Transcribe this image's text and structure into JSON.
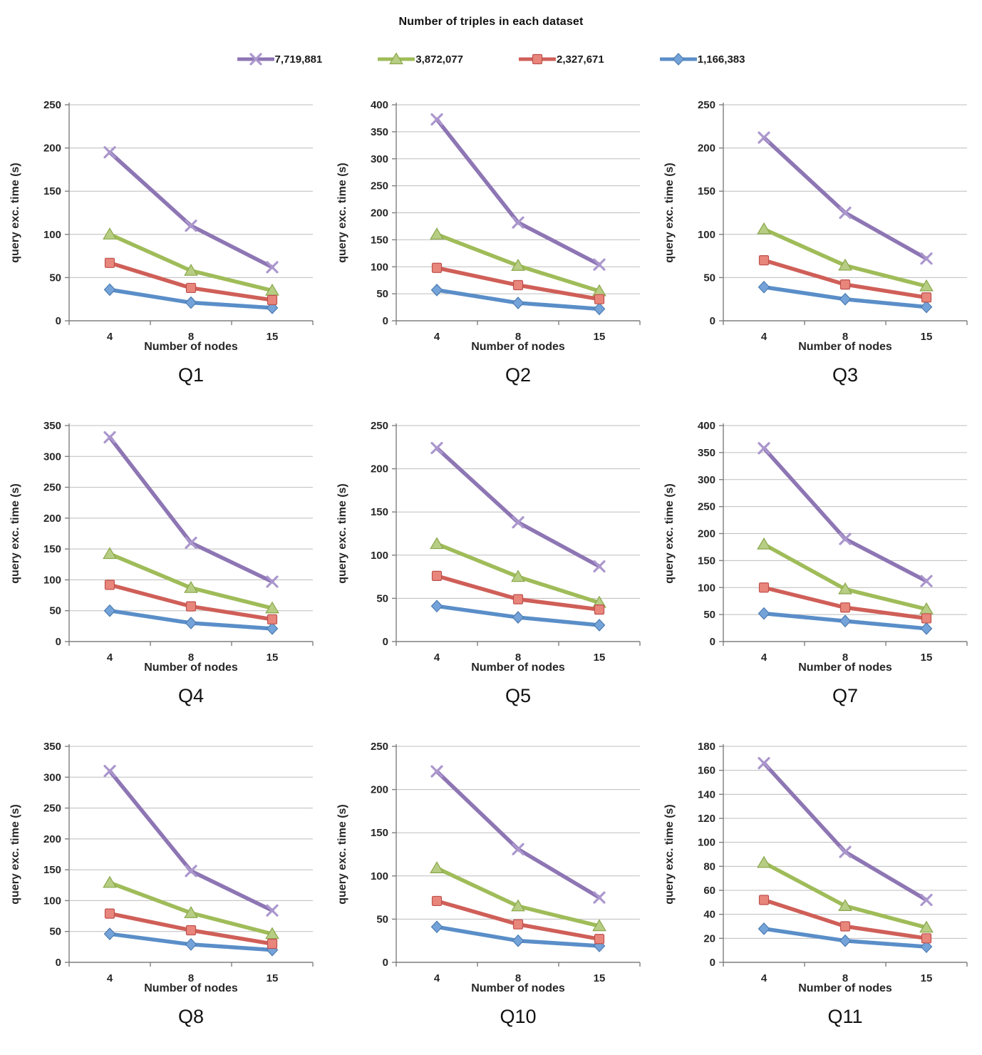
{
  "header": {
    "title": "Number of triples in each dataset"
  },
  "legend": {
    "items": [
      {
        "label": "7,719,881",
        "marker": "x-cross",
        "line_color": "#8e76b4",
        "marker_color": "#ab97cd",
        "marker_edge": "#8e76b4"
      },
      {
        "label": "3,872,077",
        "marker": "triangle",
        "line_color": "#9fbc59",
        "marker_color": "#b6cd83",
        "marker_edge": "#8aa74b"
      },
      {
        "label": "2,327,671",
        "marker": "square",
        "line_color": "#cf5f58",
        "marker_color": "#e8867c",
        "marker_edge": "#c0504d"
      },
      {
        "label": "1,166,383",
        "marker": "diamond",
        "line_color": "#5a8ec8",
        "marker_color": "#74a3da",
        "marker_edge": "#4d7cb0"
      }
    ]
  },
  "chart_data": [
    {
      "type": "line",
      "title": "Q1",
      "xlabel": "Number of nodes",
      "ylabel": "query exc. time (s)",
      "categories": [
        "4",
        "8",
        "15"
      ],
      "ylim": [
        0,
        250
      ],
      "ytick_step": 50,
      "grid": true,
      "legend_position": "top",
      "series": [
        {
          "name": "7,719,881",
          "values": [
            195,
            110,
            62
          ]
        },
        {
          "name": "3,872,077",
          "values": [
            100,
            58,
            35
          ]
        },
        {
          "name": "2,327,671",
          "values": [
            67,
            38,
            24
          ]
        },
        {
          "name": "1,166,383",
          "values": [
            36,
            21,
            15
          ]
        }
      ]
    },
    {
      "type": "line",
      "title": "Q2",
      "xlabel": "Number of nodes",
      "ylabel": "query exc. time (s)",
      "categories": [
        "4",
        "8",
        "15"
      ],
      "ylim": [
        0,
        400
      ],
      "ytick_step": 50,
      "grid": true,
      "legend_position": "top",
      "series": [
        {
          "name": "7,719,881",
          "values": [
            373,
            182,
            104
          ]
        },
        {
          "name": "3,872,077",
          "values": [
            160,
            102,
            55
          ]
        },
        {
          "name": "2,327,671",
          "values": [
            98,
            66,
            40
          ]
        },
        {
          "name": "1,166,383",
          "values": [
            57,
            33,
            22
          ]
        }
      ]
    },
    {
      "type": "line",
      "title": "Q3",
      "xlabel": "Number of nodes",
      "ylabel": "query exc. time (s)",
      "categories": [
        "4",
        "8",
        "15"
      ],
      "ylim": [
        0,
        250
      ],
      "ytick_step": 50,
      "grid": true,
      "legend_position": "top",
      "series": [
        {
          "name": "7,719,881",
          "values": [
            212,
            125,
            72
          ]
        },
        {
          "name": "3,872,077",
          "values": [
            106,
            64,
            40
          ]
        },
        {
          "name": "2,327,671",
          "values": [
            70,
            42,
            27
          ]
        },
        {
          "name": "1,166,383",
          "values": [
            39,
            25,
            16
          ]
        }
      ]
    },
    {
      "type": "line",
      "title": "Q4",
      "xlabel": "Number of nodes",
      "ylabel": "query exc. time (s)",
      "categories": [
        "4",
        "8",
        "15"
      ],
      "ylim": [
        0,
        350
      ],
      "ytick_step": 50,
      "grid": true,
      "legend_position": "top",
      "series": [
        {
          "name": "7,719,881",
          "values": [
            331,
            160,
            97
          ]
        },
        {
          "name": "3,872,077",
          "values": [
            142,
            87,
            54
          ]
        },
        {
          "name": "2,327,671",
          "values": [
            92,
            57,
            36
          ]
        },
        {
          "name": "1,166,383",
          "values": [
            50,
            30,
            21
          ]
        }
      ]
    },
    {
      "type": "line",
      "title": "Q5",
      "xlabel": "Number of nodes",
      "ylabel": "query exc. time (s)",
      "categories": [
        "4",
        "8",
        "15"
      ],
      "ylim": [
        0,
        250
      ],
      "ytick_step": 50,
      "grid": true,
      "legend_position": "top",
      "series": [
        {
          "name": "7,719,881",
          "values": [
            224,
            138,
            87
          ]
        },
        {
          "name": "3,872,077",
          "values": [
            113,
            75,
            45
          ]
        },
        {
          "name": "2,327,671",
          "values": [
            76,
            49,
            37
          ]
        },
        {
          "name": "1,166,383",
          "values": [
            41,
            28,
            19
          ]
        }
      ]
    },
    {
      "type": "line",
      "title": "Q7",
      "xlabel": "Number of nodes",
      "ylabel": "query exc. time (s)",
      "categories": [
        "4",
        "8",
        "15"
      ],
      "ylim": [
        0,
        400
      ],
      "ytick_step": 50,
      "grid": true,
      "legend_position": "top",
      "series": [
        {
          "name": "7,719,881",
          "values": [
            358,
            190,
            112
          ]
        },
        {
          "name": "3,872,077",
          "values": [
            180,
            97,
            60
          ]
        },
        {
          "name": "2,327,671",
          "values": [
            100,
            63,
            43
          ]
        },
        {
          "name": "1,166,383",
          "values": [
            52,
            38,
            24
          ]
        }
      ]
    },
    {
      "type": "line",
      "title": "Q8",
      "xlabel": "Number of nodes",
      "ylabel": "query exc. time (s)",
      "categories": [
        "4",
        "8",
        "15"
      ],
      "ylim": [
        0,
        350
      ],
      "ytick_step": 50,
      "grid": true,
      "legend_position": "top",
      "series": [
        {
          "name": "7,719,881",
          "values": [
            310,
            148,
            84
          ]
        },
        {
          "name": "3,872,077",
          "values": [
            129,
            80,
            46
          ]
        },
        {
          "name": "2,327,671",
          "values": [
            79,
            52,
            30
          ]
        },
        {
          "name": "1,166,383",
          "values": [
            46,
            29,
            20
          ]
        }
      ]
    },
    {
      "type": "line",
      "title": "Q10",
      "xlabel": "Number of nodes",
      "ylabel": "query exc. time (s)",
      "categories": [
        "4",
        "8",
        "15"
      ],
      "ylim": [
        0,
        250
      ],
      "ytick_step": 50,
      "grid": true,
      "legend_position": "top",
      "series": [
        {
          "name": "7,719,881",
          "values": [
            221,
            131,
            75
          ]
        },
        {
          "name": "3,872,077",
          "values": [
            109,
            65,
            42
          ]
        },
        {
          "name": "2,327,671",
          "values": [
            71,
            44,
            27
          ]
        },
        {
          "name": "1,166,383",
          "values": [
            41,
            25,
            19
          ]
        }
      ]
    },
    {
      "type": "line",
      "title": "Q11",
      "xlabel": "Number of nodes",
      "ylabel": "query exc. time (s)",
      "categories": [
        "4",
        "8",
        "15"
      ],
      "ylim": [
        0,
        180
      ],
      "ytick_step": 20,
      "grid": true,
      "legend_position": "top",
      "series": [
        {
          "name": "7,719,881",
          "values": [
            166,
            92,
            52
          ]
        },
        {
          "name": "3,872,077",
          "values": [
            83,
            47,
            29
          ]
        },
        {
          "name": "2,327,671",
          "values": [
            52,
            30,
            20
          ]
        },
        {
          "name": "1,166,383",
          "values": [
            28,
            18,
            13
          ]
        }
      ]
    }
  ]
}
